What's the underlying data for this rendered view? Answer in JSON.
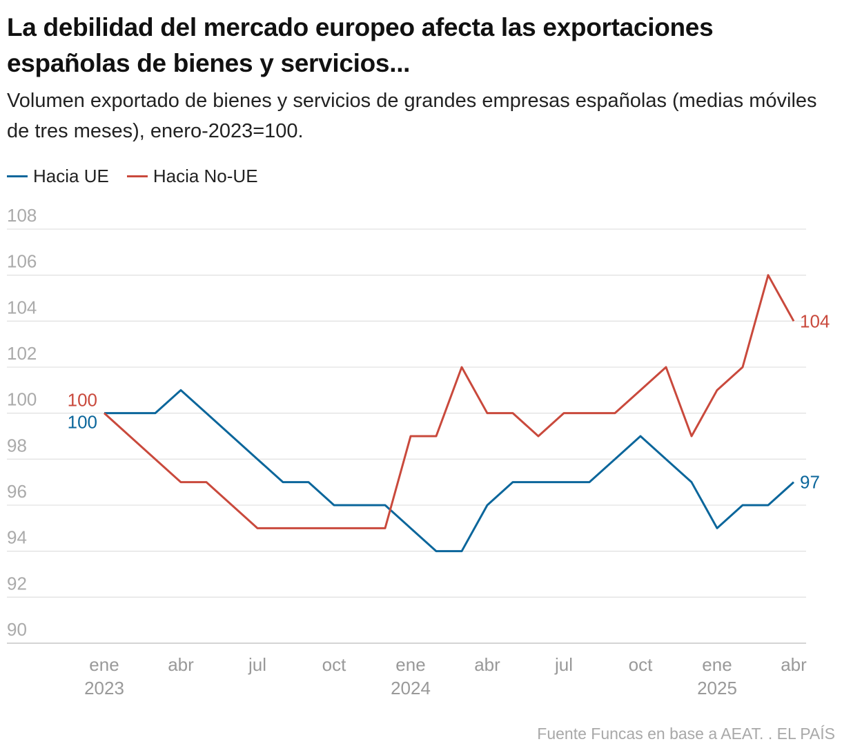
{
  "title": "La debilidad del mercado europeo afecta las exportaciones españolas de bienes y servicios...",
  "subtitle": "Volumen exportado de bienes y servicios de grandes empresas españolas (medias móviles de tres meses), enero-2023=100.",
  "source": "Fuente Funcas en base a AEAT. . EL PAÍS",
  "chart_data": {
    "type": "line",
    "title": "La debilidad del mercado europeo afecta las exportaciones españolas de bienes y servicios...",
    "xlabel": "",
    "ylabel": "",
    "ylim": [
      90,
      108
    ],
    "yticks": [
      90,
      92,
      94,
      96,
      98,
      100,
      102,
      104,
      106,
      108
    ],
    "grid": true,
    "legend_position": "top-left",
    "x": [
      "2023-01",
      "2023-02",
      "2023-03",
      "2023-04",
      "2023-05",
      "2023-06",
      "2023-07",
      "2023-08",
      "2023-09",
      "2023-10",
      "2023-11",
      "2023-12",
      "2024-01",
      "2024-02",
      "2024-03",
      "2024-04",
      "2024-05",
      "2024-06",
      "2024-07",
      "2024-08",
      "2024-09",
      "2024-10",
      "2024-11",
      "2024-12",
      "2025-01",
      "2025-02",
      "2025-03",
      "2025-04"
    ],
    "xticks": [
      {
        "index": 0,
        "label": "ene",
        "year": "2023"
      },
      {
        "index": 3,
        "label": "abr",
        "year": ""
      },
      {
        "index": 6,
        "label": "jul",
        "year": ""
      },
      {
        "index": 9,
        "label": "oct",
        "year": ""
      },
      {
        "index": 12,
        "label": "ene",
        "year": "2024"
      },
      {
        "index": 15,
        "label": "abr",
        "year": ""
      },
      {
        "index": 18,
        "label": "jul",
        "year": ""
      },
      {
        "index": 21,
        "label": "oct",
        "year": ""
      },
      {
        "index": 24,
        "label": "ene",
        "year": "2025"
      },
      {
        "index": 27,
        "label": "abr",
        "year": ""
      }
    ],
    "series": [
      {
        "name": "Hacia UE",
        "color": "#0b669b",
        "values": [
          100,
          100,
          100,
          101,
          100,
          99,
          98,
          97,
          97,
          96,
          96,
          96,
          95,
          94,
          94,
          96,
          97,
          97,
          97,
          97,
          98,
          99,
          98,
          97,
          95,
          96,
          96,
          97
        ],
        "start_label": "100",
        "end_label": "97"
      },
      {
        "name": "Hacia No-UE",
        "color": "#c9493c",
        "values": [
          100,
          99,
          98,
          97,
          97,
          96,
          95,
          95,
          95,
          95,
          95,
          95,
          99,
          99,
          102,
          100,
          100,
          99,
          100,
          100,
          100,
          101,
          102,
          99,
          101,
          102,
          106,
          104
        ],
        "start_label": "100",
        "end_label": "104"
      }
    ]
  }
}
